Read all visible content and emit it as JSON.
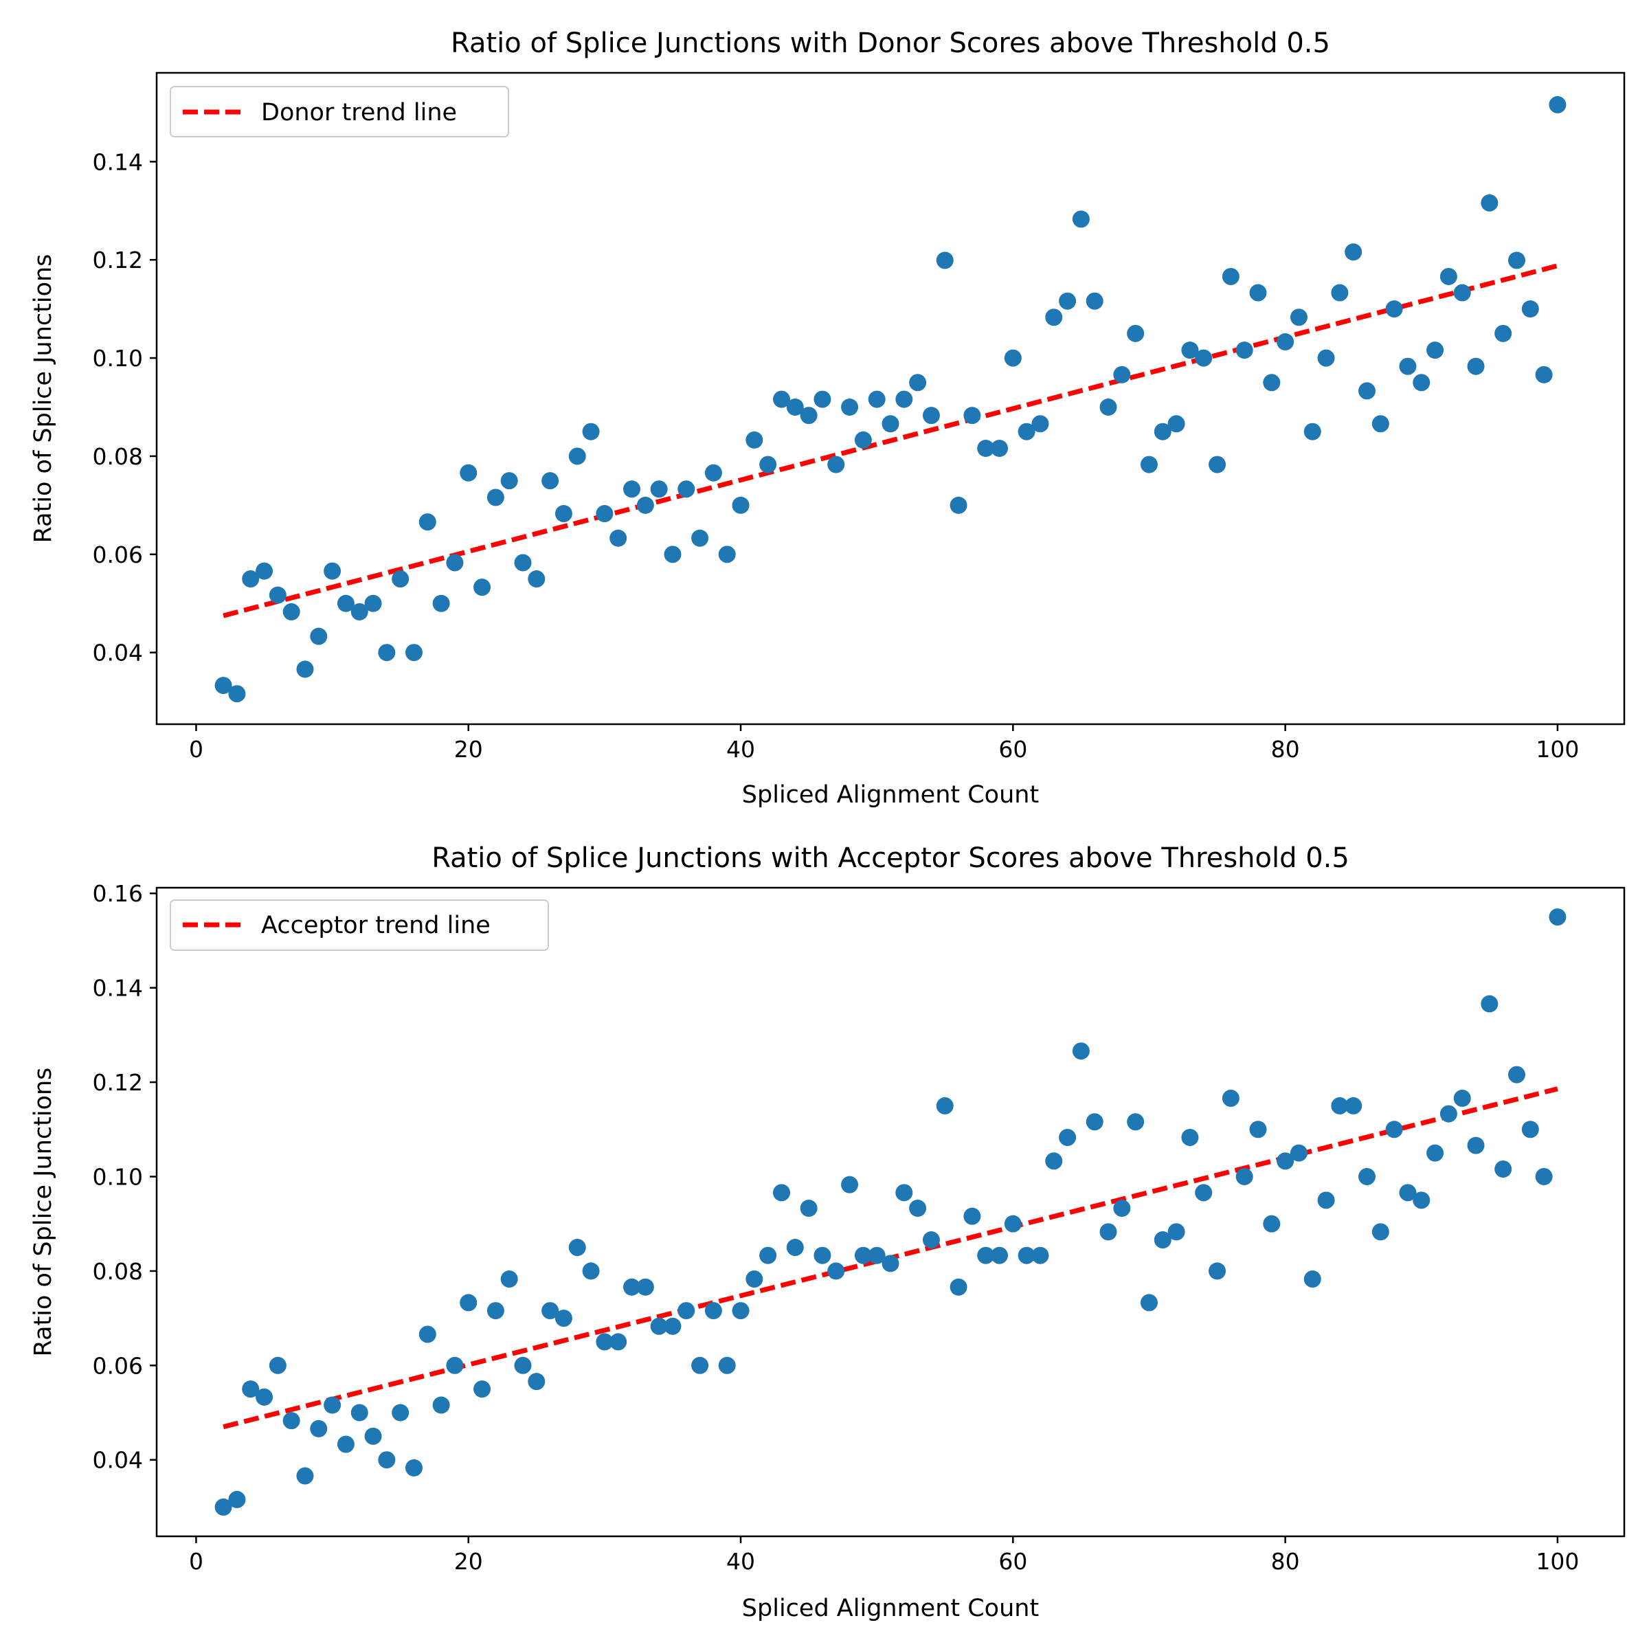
{
  "colors": {
    "points": "#1f77b4",
    "trend": "#ff0000",
    "axes": "#000000",
    "legend_frame": "#cccccc"
  },
  "chart_data": [
    {
      "type": "scatter",
      "title": "Ratio of Splice Junctions with Donor Scores above Threshold 0.5",
      "xlabel": "Spliced Alignment Count",
      "ylabel": "Ratio of Splice Junctions",
      "xlim": [
        -2.9,
        104.9
      ],
      "ylim": [
        0.0254,
        0.1581
      ],
      "xticks": [
        0,
        20,
        40,
        60,
        80,
        100
      ],
      "yticks": [
        0.04,
        0.06,
        0.08,
        0.1,
        0.12,
        0.14
      ],
      "grid": false,
      "legend_position": "top-left",
      "trend_line": {
        "name": "Donor trend line",
        "x": [
          2,
          100
        ],
        "y": [
          0.0475,
          0.1188
        ],
        "style": "dashed"
      },
      "x": [
        2,
        3,
        4,
        5,
        6,
        7,
        8,
        9,
        10,
        11,
        12,
        13,
        14,
        15,
        16,
        17,
        18,
        19,
        20,
        21,
        22,
        23,
        24,
        25,
        26,
        27,
        28,
        29,
        30,
        31,
        32,
        33,
        34,
        35,
        36,
        37,
        38,
        39,
        40,
        41,
        42,
        43,
        44,
        45,
        46,
        47,
        48,
        49,
        50,
        51,
        52,
        53,
        54,
        55,
        56,
        57,
        58,
        59,
        60,
        61,
        62,
        63,
        64,
        65,
        66,
        67,
        68,
        69,
        70,
        71,
        72,
        73,
        74,
        75,
        76,
        77,
        78,
        79,
        80,
        81,
        82,
        83,
        84,
        85,
        86,
        87,
        88,
        89,
        90,
        91,
        92,
        93,
        94,
        95,
        96,
        97,
        98,
        99,
        100
      ],
      "y": [
        0.0333,
        0.0316,
        0.055,
        0.0566,
        0.0517,
        0.0483,
        0.0366,
        0.0433,
        0.0566,
        0.05,
        0.0483,
        0.05,
        0.04,
        0.055,
        0.04,
        0.0666,
        0.05,
        0.0583,
        0.0766,
        0.0533,
        0.0716,
        0.075,
        0.0583,
        0.055,
        0.075,
        0.0683,
        0.08,
        0.085,
        0.0683,
        0.0633,
        0.0733,
        0.07,
        0.0733,
        0.06,
        0.0733,
        0.0633,
        0.0766,
        0.06,
        0.07,
        0.0833,
        0.0783,
        0.0916,
        0.09,
        0.0883,
        0.0916,
        0.0783,
        0.09,
        0.0833,
        0.0916,
        0.0866,
        0.0916,
        0.095,
        0.0883,
        0.1199,
        0.07,
        0.0883,
        0.0816,
        0.0816,
        0.1,
        0.085,
        0.0866,
        0.1083,
        0.1116,
        0.1283,
        0.1116,
        0.09,
        0.0966,
        0.105,
        0.0783,
        0.085,
        0.0866,
        0.1016,
        0.1,
        0.0783,
        0.1166,
        0.1016,
        0.1133,
        0.095,
        0.1033,
        0.1083,
        0.085,
        0.1,
        0.1133,
        0.1216,
        0.0933,
        0.0866,
        0.11,
        0.0983,
        0.095,
        0.1016,
        0.1166,
        0.1133,
        0.0983,
        0.1316,
        0.105,
        0.1199,
        0.11,
        0.0966,
        0.1516
      ]
    },
    {
      "type": "scatter",
      "title": "Ratio of Splice Junctions with Acceptor Scores above Threshold 0.5",
      "xlabel": "Spliced Alignment Count",
      "ylabel": "Ratio of Splice Junctions",
      "xlim": [
        -2.9,
        104.9
      ],
      "ylim": [
        0.0238,
        0.1612
      ],
      "xticks": [
        0,
        20,
        40,
        60,
        80,
        100
      ],
      "yticks": [
        0.04,
        0.06,
        0.08,
        0.1,
        0.12,
        0.14,
        0.16
      ],
      "grid": false,
      "legend_position": "top-left",
      "trend_line": {
        "name": "Acceptor trend line",
        "x": [
          2,
          100
        ],
        "y": [
          0.047,
          0.1186
        ],
        "style": "dashed"
      },
      "x": [
        2,
        3,
        4,
        5,
        6,
        7,
        8,
        9,
        10,
        11,
        12,
        13,
        14,
        15,
        16,
        17,
        18,
        19,
        20,
        21,
        22,
        23,
        24,
        25,
        26,
        27,
        28,
        29,
        30,
        31,
        32,
        33,
        34,
        35,
        36,
        37,
        38,
        39,
        40,
        41,
        42,
        43,
        44,
        45,
        46,
        47,
        48,
        49,
        50,
        51,
        52,
        53,
        54,
        55,
        56,
        57,
        58,
        59,
        60,
        61,
        62,
        63,
        64,
        65,
        66,
        67,
        68,
        69,
        70,
        71,
        72,
        73,
        74,
        75,
        76,
        77,
        78,
        79,
        80,
        81,
        82,
        83,
        84,
        85,
        86,
        87,
        88,
        89,
        90,
        91,
        92,
        93,
        94,
        95,
        96,
        97,
        98,
        99,
        100
      ],
      "y": [
        0.03,
        0.0316,
        0.055,
        0.0533,
        0.06,
        0.0483,
        0.0366,
        0.0466,
        0.0516,
        0.0433,
        0.05,
        0.045,
        0.04,
        0.05,
        0.0383,
        0.0666,
        0.0516,
        0.06,
        0.0733,
        0.055,
        0.0716,
        0.0783,
        0.06,
        0.0566,
        0.0716,
        0.07,
        0.085,
        0.08,
        0.065,
        0.065,
        0.0766,
        0.0766,
        0.0683,
        0.0683,
        0.0716,
        0.06,
        0.0716,
        0.06,
        0.0716,
        0.0783,
        0.0833,
        0.0966,
        0.085,
        0.0933,
        0.0833,
        0.08,
        0.0983,
        0.0833,
        0.0833,
        0.0816,
        0.0966,
        0.0933,
        0.0866,
        0.115,
        0.0766,
        0.0916,
        0.0833,
        0.0833,
        0.09,
        0.0833,
        0.0833,
        0.1033,
        0.1083,
        0.1266,
        0.1116,
        0.0883,
        0.0933,
        0.1116,
        0.0733,
        0.0866,
        0.0883,
        0.1083,
        0.0966,
        0.08,
        0.1166,
        0.1,
        0.11,
        0.09,
        0.1033,
        0.105,
        0.0783,
        0.095,
        0.115,
        0.115,
        0.1,
        0.0883,
        0.11,
        0.0966,
        0.095,
        0.105,
        0.1133,
        0.1166,
        0.1066,
        0.1366,
        0.1016,
        0.1216,
        0.11,
        0.1,
        0.155
      ]
    }
  ]
}
